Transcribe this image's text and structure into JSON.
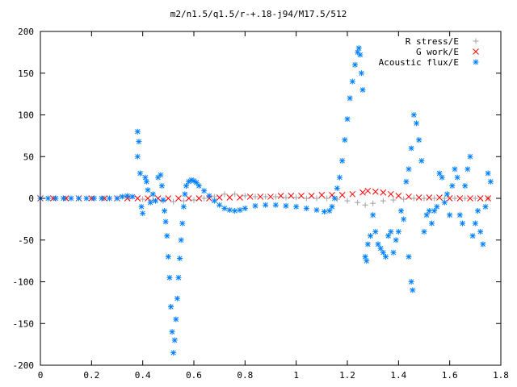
{
  "chart_data": {
    "type": "scatter",
    "title": "m2/n1.5/q1.5/r-+.18-j94/M17.5/512",
    "xlabel": "",
    "ylabel": "",
    "xlim": [
      0,
      1.8
    ],
    "ylim": [
      -200,
      200
    ],
    "x_ticks": [
      0,
      0.2,
      0.4,
      0.6,
      0.8,
      1,
      1.2,
      1.4,
      1.6,
      1.8
    ],
    "x_tick_labels": [
      "0",
      "0.2",
      "0.4",
      "0.6",
      "0.8",
      "1",
      "1.2",
      "1.4",
      "1.6",
      "1.8"
    ],
    "y_ticks": [
      -200,
      -150,
      -100,
      -50,
      0,
      50,
      100,
      150,
      200
    ],
    "y_tick_labels": [
      "-200",
      "-150",
      "-100",
      "-50",
      "0",
      "50",
      "100",
      "150",
      "200"
    ],
    "grid": false,
    "legend_position": "top-right",
    "series": [
      {
        "name": "R stress/E",
        "marker": "plus",
        "color": "#a0a0a0",
        "points": [
          [
            0.0,
            0
          ],
          [
            0.05,
            0
          ],
          [
            0.1,
            0
          ],
          [
            0.15,
            0
          ],
          [
            0.2,
            0
          ],
          [
            0.25,
            0
          ],
          [
            0.3,
            0
          ],
          [
            0.35,
            0
          ],
          [
            0.4,
            -1
          ],
          [
            0.44,
            -2
          ],
          [
            0.48,
            -3
          ],
          [
            0.52,
            -4
          ],
          [
            0.56,
            -3
          ],
          [
            0.6,
            -2
          ],
          [
            0.64,
            0
          ],
          [
            0.68,
            2
          ],
          [
            0.72,
            5
          ],
          [
            0.76,
            5
          ],
          [
            0.8,
            3
          ],
          [
            0.84,
            2
          ],
          [
            0.88,
            2
          ],
          [
            0.92,
            2
          ],
          [
            0.96,
            1
          ],
          [
            1.0,
            1
          ],
          [
            1.04,
            0
          ],
          [
            1.08,
            0
          ],
          [
            1.12,
            0
          ],
          [
            1.16,
            -1
          ],
          [
            1.2,
            -3
          ],
          [
            1.24,
            -5
          ],
          [
            1.27,
            -8
          ],
          [
            1.3,
            -6
          ],
          [
            1.34,
            -3
          ],
          [
            1.38,
            -2
          ],
          [
            1.42,
            -1
          ],
          [
            1.46,
            0
          ],
          [
            1.5,
            0
          ],
          [
            1.54,
            0
          ],
          [
            1.58,
            0
          ],
          [
            1.62,
            0
          ],
          [
            1.66,
            0
          ],
          [
            1.7,
            0
          ],
          [
            1.75,
            0
          ]
        ]
      },
      {
        "name": "G work/E",
        "marker": "cross",
        "color": "#ff0000",
        "points": [
          [
            0.0,
            0
          ],
          [
            0.05,
            0
          ],
          [
            0.1,
            0
          ],
          [
            0.15,
            0
          ],
          [
            0.2,
            0
          ],
          [
            0.25,
            0
          ],
          [
            0.3,
            0
          ],
          [
            0.34,
            0
          ],
          [
            0.38,
            0
          ],
          [
            0.42,
            0
          ],
          [
            0.46,
            0
          ],
          [
            0.5,
            0
          ],
          [
            0.54,
            0
          ],
          [
            0.58,
            0
          ],
          [
            0.62,
            0
          ],
          [
            0.66,
            0
          ],
          [
            0.7,
            1
          ],
          [
            0.74,
            1
          ],
          [
            0.78,
            1
          ],
          [
            0.82,
            2
          ],
          [
            0.86,
            2
          ],
          [
            0.9,
            2
          ],
          [
            0.94,
            3
          ],
          [
            0.98,
            3
          ],
          [
            1.02,
            3
          ],
          [
            1.06,
            3
          ],
          [
            1.1,
            4
          ],
          [
            1.14,
            4
          ],
          [
            1.18,
            4
          ],
          [
            1.22,
            5
          ],
          [
            1.26,
            7
          ],
          [
            1.28,
            9
          ],
          [
            1.31,
            8
          ],
          [
            1.34,
            7
          ],
          [
            1.37,
            5
          ],
          [
            1.4,
            3
          ],
          [
            1.44,
            2
          ],
          [
            1.48,
            1
          ],
          [
            1.52,
            1
          ],
          [
            1.56,
            1
          ],
          [
            1.6,
            0
          ],
          [
            1.64,
            0
          ],
          [
            1.68,
            0
          ],
          [
            1.72,
            0
          ],
          [
            1.75,
            0
          ]
        ]
      },
      {
        "name": "Acoustic flux/E",
        "marker": "star",
        "color": "#0080ff",
        "points": [
          [
            0.0,
            0
          ],
          [
            0.03,
            0
          ],
          [
            0.06,
            0
          ],
          [
            0.09,
            0
          ],
          [
            0.12,
            0
          ],
          [
            0.15,
            0
          ],
          [
            0.18,
            0
          ],
          [
            0.21,
            0
          ],
          [
            0.24,
            0
          ],
          [
            0.27,
            0
          ],
          [
            0.3,
            0
          ],
          [
            0.32,
            2
          ],
          [
            0.34,
            3
          ],
          [
            0.36,
            2
          ],
          [
            0.38,
            80
          ],
          [
            0.385,
            68
          ],
          [
            0.38,
            50
          ],
          [
            0.39,
            30
          ],
          [
            0.395,
            -10
          ],
          [
            0.4,
            -18
          ],
          [
            0.41,
            25
          ],
          [
            0.415,
            20
          ],
          [
            0.42,
            10
          ],
          [
            0.43,
            -5
          ],
          [
            0.44,
            5
          ],
          [
            0.45,
            -3
          ],
          [
            0.46,
            25
          ],
          [
            0.47,
            28
          ],
          [
            0.475,
            15
          ],
          [
            0.48,
            -2
          ],
          [
            0.485,
            -15
          ],
          [
            0.49,
            -28
          ],
          [
            0.495,
            -45
          ],
          [
            0.5,
            -70
          ],
          [
            0.505,
            -95
          ],
          [
            0.51,
            -130
          ],
          [
            0.515,
            -160
          ],
          [
            0.52,
            -185
          ],
          [
            0.525,
            -170
          ],
          [
            0.53,
            -145
          ],
          [
            0.535,
            -120
          ],
          [
            0.54,
            -95
          ],
          [
            0.545,
            -72
          ],
          [
            0.55,
            -50
          ],
          [
            0.555,
            -30
          ],
          [
            0.56,
            -10
          ],
          [
            0.565,
            5
          ],
          [
            0.57,
            15
          ],
          [
            0.58,
            20
          ],
          [
            0.59,
            22
          ],
          [
            0.6,
            21
          ],
          [
            0.61,
            19
          ],
          [
            0.62,
            15
          ],
          [
            0.64,
            9
          ],
          [
            0.66,
            3
          ],
          [
            0.68,
            -3
          ],
          [
            0.7,
            -8
          ],
          [
            0.72,
            -12
          ],
          [
            0.74,
            -14
          ],
          [
            0.76,
            -15
          ],
          [
            0.78,
            -14
          ],
          [
            0.8,
            -12
          ],
          [
            0.84,
            -9
          ],
          [
            0.88,
            -8
          ],
          [
            0.92,
            -8
          ],
          [
            0.96,
            -9
          ],
          [
            1.0,
            -10
          ],
          [
            1.04,
            -12
          ],
          [
            1.08,
            -14
          ],
          [
            1.11,
            -16
          ],
          [
            1.13,
            -15
          ],
          [
            1.14,
            -10
          ],
          [
            1.15,
            0
          ],
          [
            1.16,
            12
          ],
          [
            1.17,
            25
          ],
          [
            1.18,
            45
          ],
          [
            1.19,
            70
          ],
          [
            1.2,
            95
          ],
          [
            1.21,
            120
          ],
          [
            1.22,
            140
          ],
          [
            1.23,
            160
          ],
          [
            1.24,
            175
          ],
          [
            1.245,
            180
          ],
          [
            1.25,
            172
          ],
          [
            1.255,
            150
          ],
          [
            1.26,
            130
          ],
          [
            1.27,
            -70
          ],
          [
            1.275,
            -75
          ],
          [
            1.28,
            -55
          ],
          [
            1.29,
            -45
          ],
          [
            1.3,
            -20
          ],
          [
            1.31,
            -40
          ],
          [
            1.32,
            -55
          ],
          [
            1.33,
            -60
          ],
          [
            1.34,
            -65
          ],
          [
            1.35,
            -70
          ],
          [
            1.36,
            -45
          ],
          [
            1.37,
            -40
          ],
          [
            1.38,
            -65
          ],
          [
            1.39,
            -50
          ],
          [
            1.4,
            -40
          ],
          [
            1.41,
            -15
          ],
          [
            1.42,
            -25
          ],
          [
            1.43,
            20
          ],
          [
            1.44,
            35
          ],
          [
            1.45,
            60
          ],
          [
            1.46,
            100
          ],
          [
            1.47,
            90
          ],
          [
            1.45,
            -100
          ],
          [
            1.455,
            -110
          ],
          [
            1.44,
            -70
          ],
          [
            1.48,
            70
          ],
          [
            1.49,
            45
          ],
          [
            1.5,
            -40
          ],
          [
            1.51,
            -20
          ],
          [
            1.52,
            -15
          ],
          [
            1.53,
            -30
          ],
          [
            1.54,
            -15
          ],
          [
            1.55,
            -10
          ],
          [
            1.56,
            30
          ],
          [
            1.57,
            25
          ],
          [
            1.58,
            -5
          ],
          [
            1.59,
            5
          ],
          [
            1.6,
            -20
          ],
          [
            1.61,
            15
          ],
          [
            1.62,
            35
          ],
          [
            1.63,
            25
          ],
          [
            1.64,
            -20
          ],
          [
            1.65,
            -30
          ],
          [
            1.66,
            15
          ],
          [
            1.67,
            35
          ],
          [
            1.68,
            50
          ],
          [
            1.69,
            -45
          ],
          [
            1.7,
            -30
          ],
          [
            1.71,
            -15
          ],
          [
            1.72,
            -40
          ],
          [
            1.73,
            -55
          ],
          [
            1.74,
            -10
          ],
          [
            1.75,
            30
          ],
          [
            1.76,
            20
          ]
        ]
      }
    ]
  }
}
